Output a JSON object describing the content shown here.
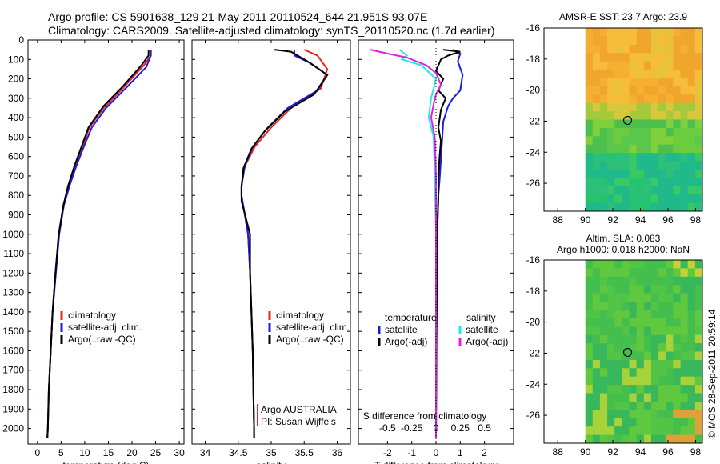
{
  "header": {
    "line1": "Argo profile: CS 5901638_129 21-May-2011 20110524_644 21.951S 93.07E",
    "line2": "Climatology: CARS2009. Satellite-adjusted climatology: synTS_20110520.nc (1.7d earlier)"
  },
  "stamp": "©IMOS 28-Sep-2011 20:59:14",
  "colors": {
    "climatology": "#e8261e",
    "satellite": "#1c1ce0",
    "argo": "#000000",
    "argo_s": "#e020e0",
    "satellite_s": "#20e8e8"
  },
  "chart_data": [
    {
      "type": "line",
      "xlabel": "temperature (deg C)",
      "xlim": [
        -2,
        31
      ],
      "xticks": [
        0,
        5,
        10,
        15,
        20,
        25,
        30
      ],
      "ylim": [
        2080,
        0
      ],
      "yticks": [
        0,
        100,
        200,
        300,
        400,
        500,
        600,
        700,
        800,
        900,
        1000,
        1100,
        1200,
        1300,
        1400,
        1500,
        1600,
        1700,
        1800,
        1900,
        2000
      ],
      "legend": [
        "climatology",
        "satellite-adj. clim.",
        "Argo(..raw -QC)"
      ],
      "series": [
        {
          "name": "climatology",
          "points": [
            [
              24,
              50
            ],
            [
              24,
              80
            ],
            [
              22.5,
              130
            ],
            [
              18,
              250
            ],
            [
              14,
              350
            ],
            [
              11,
              450
            ],
            [
              9.5,
              550
            ],
            [
              8,
              650
            ],
            [
              6.5,
              750
            ],
            [
              5.5,
              850
            ],
            [
              4.5,
              1000
            ],
            [
              3.8,
              1200
            ],
            [
              3.2,
              1400
            ],
            [
              2.8,
              1600
            ],
            [
              2.4,
              1800
            ],
            [
              2.2,
              2000
            ],
            [
              2.1,
              2050
            ]
          ]
        },
        {
          "name": "satellite-adj. clim.",
          "points": [
            [
              24,
              50
            ],
            [
              24,
              80
            ],
            [
              23,
              140
            ],
            [
              19,
              240
            ],
            [
              14.5,
              350
            ],
            [
              11.5,
              450
            ],
            [
              9.8,
              550
            ],
            [
              8.2,
              650
            ],
            [
              6.8,
              750
            ],
            [
              5.6,
              850
            ],
            [
              4.6,
              1000
            ],
            [
              3.9,
              1200
            ],
            [
              3.2,
              1400
            ],
            [
              2.8,
              1600
            ],
            [
              2.4,
              1800
            ],
            [
              2.2,
              2000
            ],
            [
              2.1,
              2050
            ]
          ]
        },
        {
          "name": "Argo(..raw -QC)",
          "points": [
            [
              23.5,
              50
            ],
            [
              23.5,
              80
            ],
            [
              22,
              130
            ],
            [
              18,
              240
            ],
            [
              14,
              340
            ],
            [
              10.8,
              450
            ],
            [
              9.3,
              550
            ],
            [
              7.8,
              650
            ],
            [
              6.5,
              750
            ],
            [
              5.5,
              850
            ],
            [
              4.5,
              1000
            ],
            [
              3.8,
              1200
            ],
            [
              3.2,
              1400
            ],
            [
              2.8,
              1600
            ],
            [
              2.4,
              1800
            ],
            [
              2.2,
              2000
            ],
            [
              2.1,
              2050
            ]
          ]
        }
      ]
    },
    {
      "type": "line",
      "xlabel": "salinity",
      "xlim": [
        33.8,
        36.2
      ],
      "xticks": [
        34,
        34.5,
        35,
        35.5,
        36
      ],
      "ylim": [
        2080,
        0
      ],
      "legend": [
        "climatology",
        "satellite-adj. clim.",
        "Argo(..raw -QC)"
      ],
      "annotation": [
        "Argo AUSTRALIA",
        "PI: Susan Wijffels"
      ],
      "series": [
        {
          "name": "climatology",
          "points": [
            [
              35.5,
              50
            ],
            [
              35.7,
              80
            ],
            [
              35.85,
              150
            ],
            [
              35.75,
              250
            ],
            [
              35.3,
              350
            ],
            [
              35.0,
              450
            ],
            [
              34.75,
              550
            ],
            [
              34.6,
              650
            ],
            [
              34.55,
              750
            ],
            [
              34.55,
              800
            ],
            [
              34.6,
              900
            ],
            [
              34.65,
              1000
            ],
            [
              34.68,
              1200
            ],
            [
              34.7,
              1400
            ],
            [
              34.72,
              1600
            ],
            [
              34.73,
              1800
            ],
            [
              34.74,
              2000
            ],
            [
              34.74,
              2050
            ]
          ]
        },
        {
          "name": "satellite-adj. clim.",
          "points": [
            [
              35.35,
              50
            ],
            [
              35.35,
              80
            ],
            [
              35.6,
              120
            ],
            [
              35.85,
              180
            ],
            [
              35.7,
              260
            ],
            [
              35.25,
              350
            ],
            [
              34.95,
              450
            ],
            [
              34.72,
              550
            ],
            [
              34.6,
              650
            ],
            [
              34.55,
              750
            ],
            [
              34.55,
              800
            ],
            [
              34.6,
              900
            ],
            [
              34.65,
              1000
            ],
            [
              34.68,
              1200
            ],
            [
              34.7,
              1400
            ],
            [
              34.72,
              1600
            ],
            [
              34.73,
              1800
            ],
            [
              34.74,
              2000
            ],
            [
              34.74,
              2050
            ]
          ]
        },
        {
          "name": "Argo(..raw -QC)",
          "points": [
            [
              35.05,
              50
            ],
            [
              35.3,
              60
            ],
            [
              35.55,
              110
            ],
            [
              35.85,
              180
            ],
            [
              35.65,
              280
            ],
            [
              35.2,
              370
            ],
            [
              34.9,
              470
            ],
            [
              34.7,
              560
            ],
            [
              34.58,
              660
            ],
            [
              34.55,
              760
            ],
            [
              34.55,
              830
            ],
            [
              34.62,
              920
            ],
            [
              34.68,
              1000
            ],
            [
              34.68,
              1200
            ],
            [
              34.7,
              1400
            ],
            [
              34.72,
              1600
            ],
            [
              34.73,
              1800
            ],
            [
              34.74,
              2000
            ],
            [
              34.74,
              2050
            ]
          ]
        }
      ]
    },
    {
      "type": "line",
      "xlabel": "T difference from climatology",
      "xlabel_top": "S difference from climatology",
      "xlim": [
        -3.2,
        3.2
      ],
      "xticks": [
        -2,
        -1,
        0,
        1,
        2
      ],
      "xticks_top": [
        "-0.5",
        "-0.25",
        "0",
        "0.25",
        "0.5"
      ],
      "ylim": [
        2080,
        0
      ],
      "legend_left_title": "temperature",
      "legend_right_title": "salinity",
      "legend_left": [
        "satellite",
        "Argo(-adj)"
      ],
      "legend_right": [
        "satellite",
        "Argo(-adj)"
      ],
      "series": [
        {
          "name": "temperature satellite",
          "points": [
            [
              0.7,
              50
            ],
            [
              1.0,
              70
            ],
            [
              0.9,
              110
            ],
            [
              1.1,
              180
            ],
            [
              1.0,
              260
            ],
            [
              0.7,
              300
            ],
            [
              0.5,
              340
            ],
            [
              0.3,
              420
            ],
            [
              0.25,
              520
            ],
            [
              0.2,
              620
            ],
            [
              0.15,
              720
            ],
            [
              0.1,
              800
            ],
            [
              0.05,
              1000
            ],
            [
              0.02,
              1500
            ],
            [
              0,
              2050
            ]
          ]
        },
        {
          "name": "temperature Argo(-adj)",
          "points": [
            [
              0.3,
              50
            ],
            [
              1.0,
              60
            ],
            [
              0.5,
              80
            ],
            [
              0.2,
              100
            ],
            [
              0.0,
              160
            ],
            [
              0.3,
              200
            ],
            [
              0.1,
              260
            ],
            [
              0.4,
              300
            ],
            [
              0.2,
              360
            ],
            [
              0.1,
              450
            ],
            [
              0.2,
              520
            ],
            [
              0.15,
              600
            ],
            [
              0.1,
              700
            ],
            [
              0.1,
              800
            ],
            [
              0.05,
              1000
            ],
            [
              0.02,
              1500
            ],
            [
              0,
              2050
            ]
          ]
        },
        {
          "name": "salinity satellite",
          "points": [
            [
              -1.5,
              50
            ],
            [
              -1.2,
              80
            ],
            [
              -1.4,
              100
            ],
            [
              -0.6,
              130
            ],
            [
              0.0,
              200
            ],
            [
              -0.2,
              300
            ],
            [
              -0.3,
              400
            ],
            [
              -0.1,
              500
            ],
            [
              -0.05,
              700
            ],
            [
              0,
              1000
            ],
            [
              0,
              1500
            ],
            [
              0,
              2050
            ]
          ]
        },
        {
          "name": "salinity Argo(-adj)",
          "points": [
            [
              -2.7,
              50
            ],
            [
              -2.0,
              70
            ],
            [
              -1.2,
              90
            ],
            [
              -0.4,
              130
            ],
            [
              0.0,
              170
            ],
            [
              0.2,
              230
            ],
            [
              0.0,
              280
            ],
            [
              -0.1,
              330
            ],
            [
              -0.2,
              400
            ],
            [
              -0.05,
              500
            ],
            [
              0,
              700
            ],
            [
              0,
              1000
            ],
            [
              0,
              1500
            ],
            [
              0,
              2050
            ]
          ]
        }
      ]
    },
    {
      "type": "heatmap",
      "title": "AMSR-E SST: 23.7  Argo: 23.9",
      "xlim": [
        87,
        98.5
      ],
      "ylim": [
        -27.8,
        -16
      ],
      "xticks": [
        88,
        90,
        92,
        94,
        96,
        98
      ],
      "yticks": [
        -16,
        -18,
        -20,
        -22,
        -24,
        -26
      ],
      "marker": [
        93.07,
        -21.95
      ]
    },
    {
      "type": "heatmap",
      "title": "Altim. SLA: 0.083",
      "subtitle": "Argo h1000: 0.018 h2000: NaN",
      "xlim": [
        87,
        98.5
      ],
      "ylim": [
        -27.8,
        -16
      ],
      "xticks": [
        88,
        90,
        92,
        94,
        96,
        98
      ],
      "yticks": [
        -16,
        -18,
        -20,
        -22,
        -24,
        -26
      ],
      "marker": [
        93.07,
        -21.95
      ]
    }
  ]
}
